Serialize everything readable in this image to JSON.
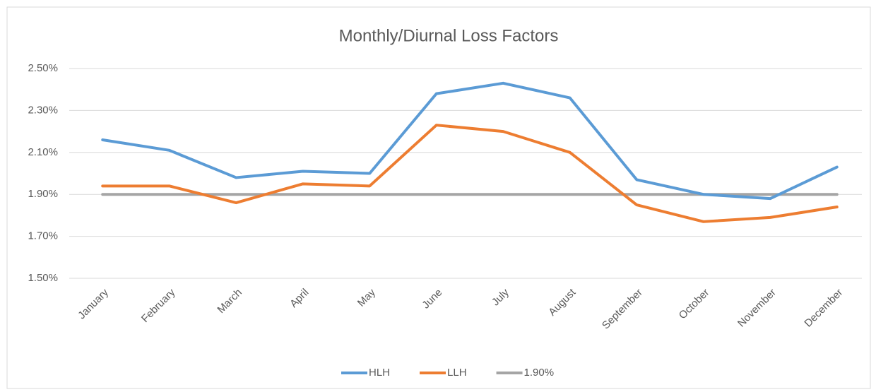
{
  "chart_data": {
    "type": "line",
    "title": "Monthly/Diurnal Loss Factors",
    "categories": [
      "January",
      "February",
      "March",
      "April",
      "May",
      "June",
      "July",
      "August",
      "September",
      "October",
      "November",
      "December"
    ],
    "series": [
      {
        "name": "HLH",
        "color": "#5b9bd5",
        "values": [
          2.16,
          2.11,
          1.98,
          2.01,
          2.0,
          2.38,
          2.43,
          2.36,
          1.97,
          1.9,
          1.88,
          2.03
        ]
      },
      {
        "name": "LLH",
        "color": "#ed7d31",
        "values": [
          1.94,
          1.94,
          1.86,
          1.95,
          1.94,
          2.23,
          2.2,
          2.1,
          1.85,
          1.77,
          1.79,
          1.84
        ]
      },
      {
        "name": "1.90%",
        "color": "#a5a5a5",
        "values": [
          1.9,
          1.9,
          1.9,
          1.9,
          1.9,
          1.9,
          1.9,
          1.9,
          1.9,
          1.9,
          1.9,
          1.9
        ]
      }
    ],
    "ylim": [
      1.5,
      2.5
    ],
    "yticks": [
      {
        "value": 1.5,
        "label": "1.50%"
      },
      {
        "value": 1.7,
        "label": "1.70%"
      },
      {
        "value": 1.9,
        "label": "1.90%"
      },
      {
        "value": 2.1,
        "label": "2.10%"
      },
      {
        "value": 2.3,
        "label": "2.30%"
      },
      {
        "value": 2.5,
        "label": "2.50%"
      }
    ],
    "grid": true,
    "legend": "bottom"
  }
}
